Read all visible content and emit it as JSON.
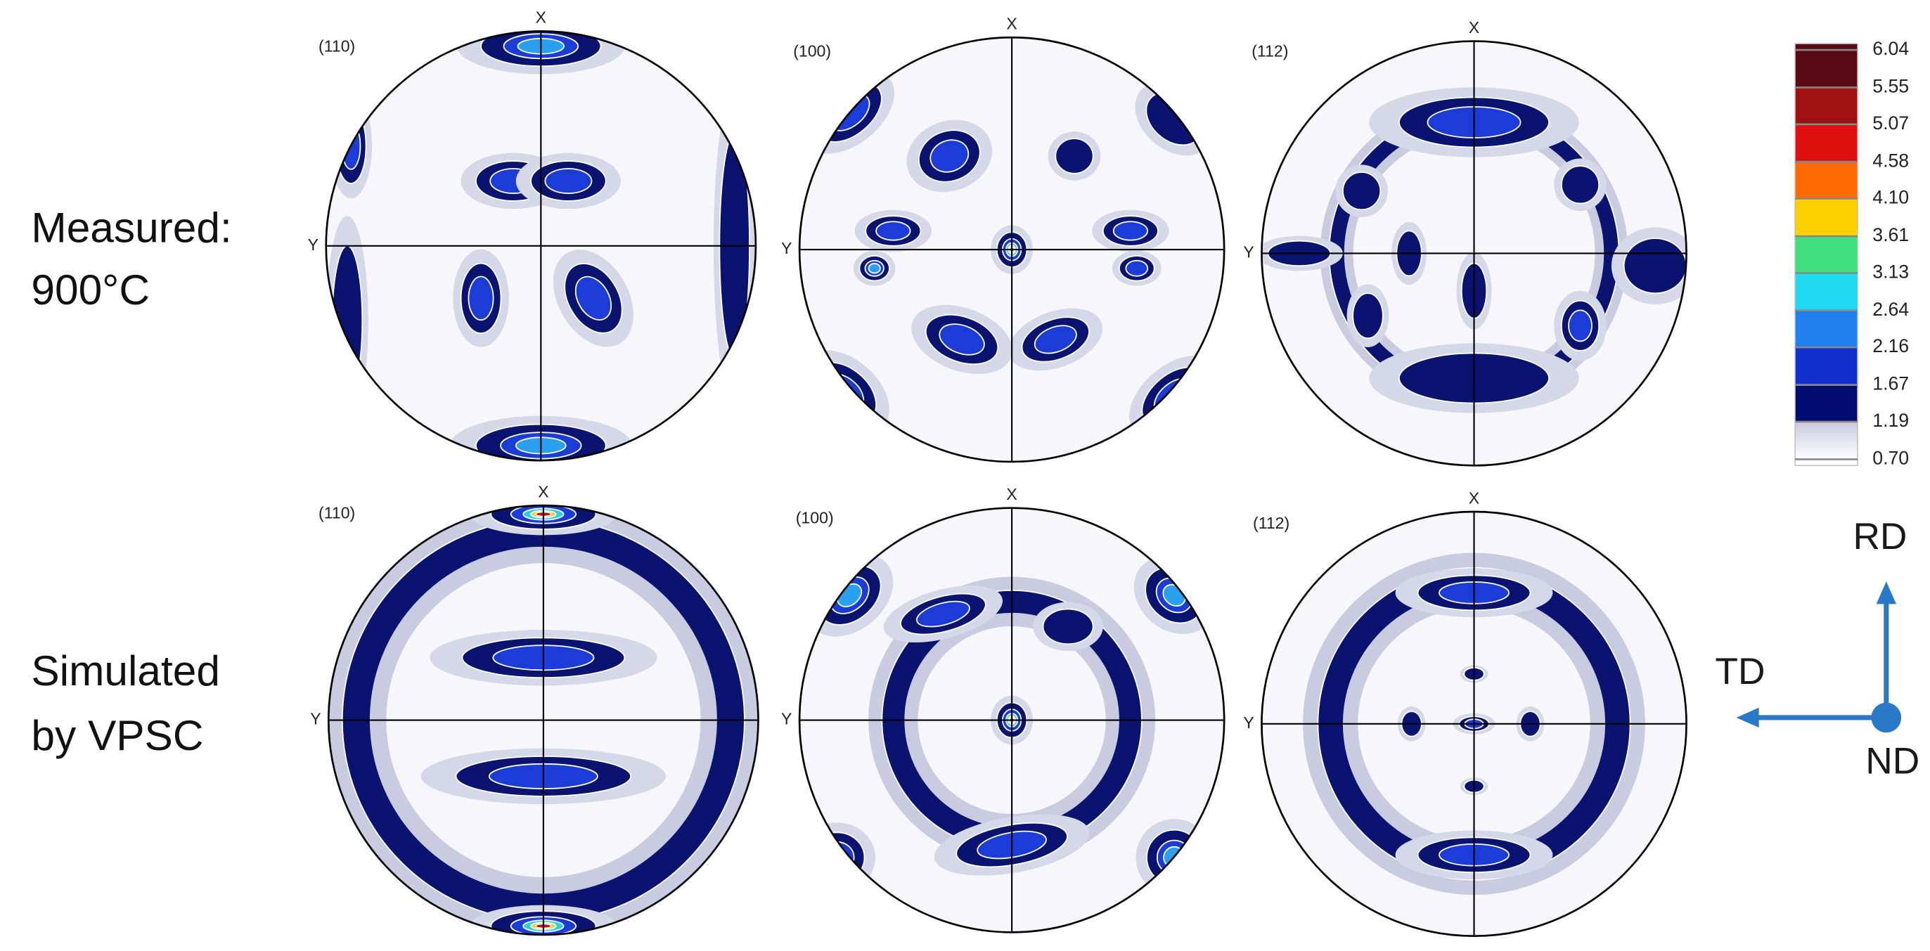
{
  "row_labels": [
    [
      "Measured:",
      "900°C"
    ],
    [
      "Simulated",
      "by VPSC"
    ]
  ],
  "pole_figures": [
    {
      "label": "(110)",
      "x_label": "X",
      "y_label": "Y"
    },
    {
      "label": "(100)",
      "x_label": "X",
      "y_label": "Y"
    },
    {
      "label": "(112)",
      "x_label": "X",
      "y_label": "Y"
    },
    {
      "label": "(110)",
      "x_label": "X",
      "y_label": "Y"
    },
    {
      "label": "(100)",
      "x_label": "X",
      "y_label": "Y"
    },
    {
      "label": "(112)",
      "x_label": "X",
      "y_label": "Y"
    }
  ],
  "colorbar": {
    "ticks": [
      6.04,
      5.55,
      5.07,
      4.58,
      {
        "value": 4.1,
        "label": "4.10"
      },
      3.61,
      3.13,
      2.64,
      2.16,
      1.67,
      1.19,
      {
        "value": 0.7,
        "label": "0.70"
      }
    ],
    "lim": [
      0.7,
      6.04
    ],
    "colors": [
      "#5a0a14",
      "#a01010",
      "#e01010",
      "#ff6a00",
      "#ffd000",
      "#40e080",
      "#20d8f0",
      "#2080f0",
      "#1030d0",
      "#000c70",
      "#ffffff"
    ]
  },
  "axes_diagram": {
    "rd": "RD",
    "td": "TD",
    "nd": "ND"
  }
}
